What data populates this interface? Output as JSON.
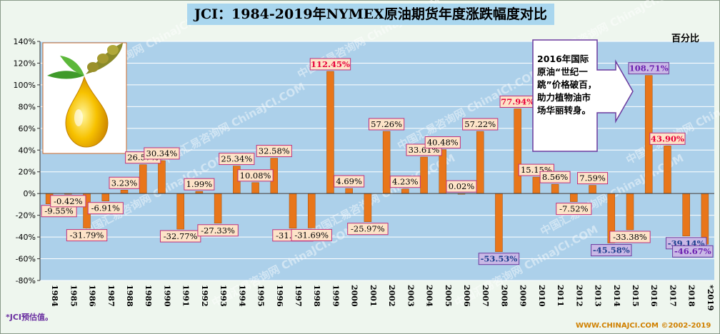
{
  "title": "JCI：1984-2019年NYMEX原油期货年度涨跌幅度对比",
  "unit_label": "百分比",
  "footnote": "*JCI预估值。",
  "footer": "WWW.CHINAJCI.COM ©2002-2019",
  "watermark": "中国汇易咨询网 ChinaJCI.COM",
  "callout": "2016年国际原油“世纪一跳”价格破百，助力植物油市场华丽转身。",
  "colors": {
    "bar": "#e8761a",
    "plot_bg": "#acd0ea",
    "label_bg": "#fde3c8",
    "label_border": "#c0307a",
    "label_text": "#000000",
    "red_label_text": "#e8003a",
    "blue_label_text": "#1a3d8c",
    "blue_label_bg": "#c9b8e6",
    "blue_label_border": "#6b3a9e",
    "year_text": "#000000"
  },
  "chart_data": {
    "type": "bar",
    "title": "JCI：1984-2019年NYMEX原油期货年度涨跌幅度对比",
    "ylabel": "百分比",
    "ylim": [
      -80,
      140
    ],
    "y_ticks": [
      -80,
      -60,
      -40,
      -20,
      0,
      20,
      40,
      60,
      80,
      100,
      120,
      140
    ],
    "y_tick_labels": [
      "-80%",
      "-60%",
      "-40%",
      "-20%",
      "0%",
      "20%",
      "40%",
      "60%",
      "80%",
      "100%",
      "120%",
      "140%"
    ],
    "grid": true,
    "legend": "none",
    "categories": [
      "1984",
      "1985",
      "1986",
      "1987",
      "1988",
      "1989",
      "1990",
      "1991",
      "1992",
      "1993",
      "1994",
      "1995",
      "1996",
      "1997",
      "1998",
      "1999",
      "2000",
      "2001",
      "2002",
      "2003",
      "2004",
      "2005",
      "2006",
      "2007",
      "2008",
      "2009",
      "2010",
      "2011",
      "2012",
      "2013",
      "2014",
      "2015",
      "2016",
      "2017",
      "2018",
      "*2019"
    ],
    "values": [
      -9.55,
      -0.42,
      -31.79,
      -6.91,
      3.23,
      26.57,
      30.34,
      -32.77,
      1.99,
      -27.33,
      25.34,
      10.08,
      32.58,
      -31.94,
      -31.69,
      112.45,
      4.69,
      -25.97,
      57.26,
      4.23,
      33.61,
      40.48,
      0.02,
      57.22,
      -53.53,
      77.94,
      15.15,
      8.56,
      -7.52,
      7.59,
      -45.58,
      -33.38,
      108.71,
      43.9,
      -39.14,
      -46.67
    ],
    "data_labels": [
      "-9.55%",
      "-0.42%",
      "-31.79%",
      "-6.91%",
      "3.23%",
      "26.57%",
      "30.34%",
      "-32.77%",
      "1.99%",
      "-27.33%",
      "25.34%",
      "10.08%",
      "32.58%",
      "-31.94%",
      "-31.69%",
      "112.45%",
      "4.69%",
      "-25.97%",
      "57.26%",
      "4.23%",
      "33.61%",
      "40.48%",
      "0.02%",
      "57.22%",
      "-53.53%",
      "77.94%",
      "15.15%",
      "8.56%",
      "-7.52%",
      "7.59%",
      "-45.58%",
      "-33.38%",
      "108.71%",
      "43.90%",
      "-39.14%",
      "-46.67%"
    ],
    "label_styles": [
      "n",
      "n",
      "n",
      "n",
      "n",
      "n",
      "n",
      "n",
      "n",
      "n",
      "n",
      "n",
      "n",
      "n",
      "n",
      "red",
      "n",
      "n",
      "n",
      "n",
      "n",
      "n",
      "n",
      "n",
      "blue",
      "red",
      "n",
      "n",
      "n",
      "n",
      "blue",
      "n",
      "purple",
      "red",
      "blue",
      "purple"
    ]
  }
}
